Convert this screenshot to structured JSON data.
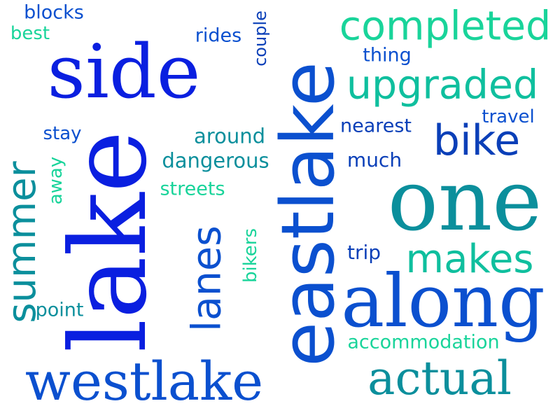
{
  "words": [
    {
      "text": "blocks"
    },
    {
      "text": "best"
    },
    {
      "text": "side"
    },
    {
      "text": "rides"
    },
    {
      "text": "couple"
    },
    {
      "text": "completed"
    },
    {
      "text": "thing"
    },
    {
      "text": "upgraded"
    },
    {
      "text": "travel"
    },
    {
      "text": "nearest"
    },
    {
      "text": "stay"
    },
    {
      "text": "around"
    },
    {
      "text": "bike"
    },
    {
      "text": "dangerous"
    },
    {
      "text": "much"
    },
    {
      "text": "away"
    },
    {
      "text": "streets"
    },
    {
      "text": "summer"
    },
    {
      "text": "lake"
    },
    {
      "text": "eastlake"
    },
    {
      "text": "one"
    },
    {
      "text": "lanes"
    },
    {
      "text": "bikers"
    },
    {
      "text": "trip"
    },
    {
      "text": "makes"
    },
    {
      "text": "point"
    },
    {
      "text": "along"
    },
    {
      "text": "accommodation"
    },
    {
      "text": "westlake"
    },
    {
      "text": "actual"
    }
  ],
  "colors": {
    "blue": "#0a1fe0",
    "royal": "#0b50cf",
    "teal": "#0b8f9c",
    "green": "#19d49a",
    "aqua": "#0fbf9e",
    "navy": "#0a3fb8"
  }
}
